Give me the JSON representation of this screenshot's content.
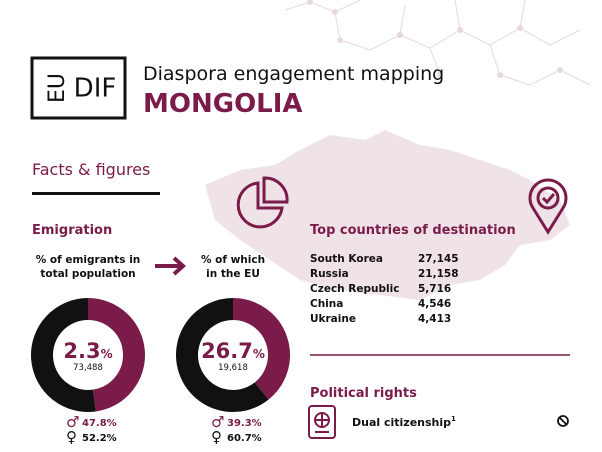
{
  "header": {
    "logo_left": "EU",
    "logo_right": "DIF",
    "title": "Diaspora engagement mapping",
    "country": "MONGOLIA"
  },
  "facts": {
    "title": "Facts & figures"
  },
  "emigration": {
    "title": "Emigration",
    "donuts": [
      {
        "caption": [
          "% of emigrants in",
          "total population"
        ],
        "value": 2.3,
        "unit": "%",
        "count": "73,488",
        "male": {
          "value": 47.8,
          "label": "47.8%"
        },
        "female": {
          "value": 52.2,
          "label": "52.2%"
        }
      },
      {
        "caption": [
          "% of which",
          "in the EU"
        ],
        "value": 26.7,
        "unit": "%",
        "count": "19,618",
        "male": {
          "value": 39.3,
          "label": "39.3%"
        },
        "female": {
          "value": 60.7,
          "label": "60.7%"
        }
      }
    ]
  },
  "destinations": {
    "title": "Top countries of destination",
    "rows": [
      [
        "South Korea",
        "27,145"
      ],
      [
        "Russia",
        "21,158"
      ],
      [
        "Czech Republic",
        "5,716"
      ],
      [
        "China",
        "4,546"
      ],
      [
        "Ukraine",
        "4,413"
      ]
    ]
  },
  "political": {
    "title": "Political rights",
    "item": "Dual citizenship",
    "note": "1"
  }
}
